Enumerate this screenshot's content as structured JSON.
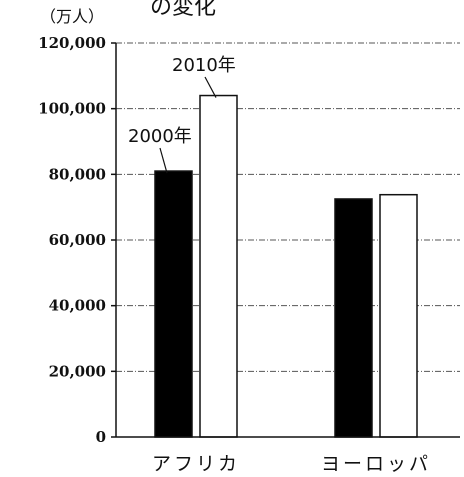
{
  "chart_data": {
    "type": "bar",
    "title": "の変化",
    "ylabel": "（万人）",
    "ylim": [
      0,
      120000
    ],
    "yticks": [
      0,
      20000,
      40000,
      60000,
      80000,
      100000,
      120000
    ],
    "ytick_labels": [
      "0",
      "20,000",
      "40,000",
      "60,000",
      "80,000",
      "100,000",
      "120,000"
    ],
    "categories": [
      "アフリカ",
      "ヨーロッパ"
    ],
    "series": [
      {
        "name": "2000年",
        "values": [
          81000,
          72500
        ],
        "color": "#000000"
      },
      {
        "name": "2010年",
        "values": [
          104000,
          73800
        ],
        "color": "#ffffff"
      }
    ],
    "annotations": [
      "2000年",
      "2010年"
    ],
    "grid": true,
    "legend": "none"
  }
}
